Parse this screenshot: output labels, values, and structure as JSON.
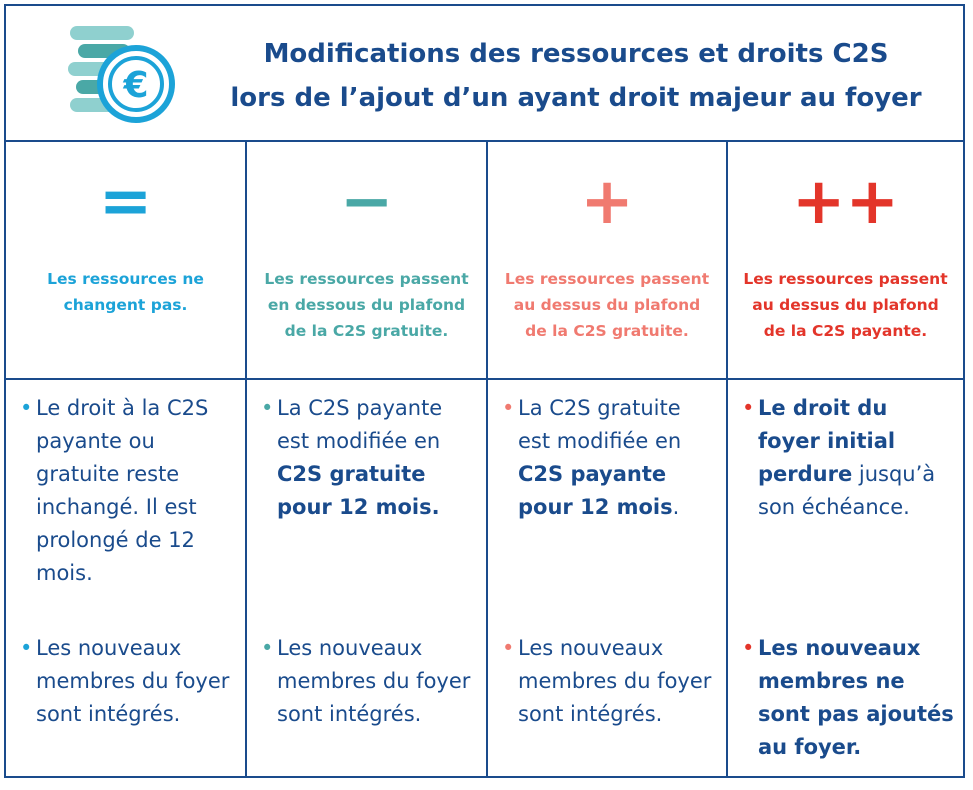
{
  "header": {
    "title": [
      "Modifications des ressources et droits C2S",
      "lors de l’ajout d’un ayant droit majeur au foyer"
    ]
  },
  "columns": [
    {
      "color": "#1ca3d8",
      "symbol": "=",
      "description": "Les ressources ne changent pas.",
      "bullets": [
        [
          {
            "text": "Le droit à la C2S payante ou gratuite reste inchangé. Il est prolongé de 12 mois."
          }
        ],
        [
          {
            "text": "Les nouveaux membres du foyer sont intégrés."
          }
        ]
      ]
    },
    {
      "color": "#4aa8a6",
      "symbol": "−",
      "description": "Les ressources passent en dessous du plafond de la C2S gratuite.",
      "bullets": [
        [
          {
            "text": "La C2S payante est modifiée en "
          },
          {
            "text": "C2S gratuite pour 12 mois.",
            "bold": true
          }
        ],
        [
          {
            "text": "Les nouveaux membres du foyer sont intégrés."
          }
        ]
      ]
    },
    {
      "color": "#f07a70",
      "symbol": "+",
      "description": "Les ressources passent au dessus du plafond de la C2S gratuite.",
      "bullets": [
        [
          {
            "text": "La C2S gratuite est modifiée en "
          },
          {
            "text": "C2S payante pour 12 mois",
            "bold": true
          },
          {
            "text": "."
          }
        ],
        [
          {
            "text": "Les nouveaux membres du foyer sont intégrés."
          }
        ]
      ]
    },
    {
      "color": "#e3352a",
      "symbol": "++",
      "description": "Les ressources passent au dessus du plafond de la C2S payante.",
      "bullets": [
        [
          {
            "text": "Le droit du foyer initial perdure",
            "bold": true
          },
          {
            "text": " jusqu’à son échéance."
          }
        ],
        [
          {
            "text": "Les nouveaux membres ne sont pas ajoutés au foyer.",
            "bold": true
          }
        ]
      ]
    }
  ]
}
